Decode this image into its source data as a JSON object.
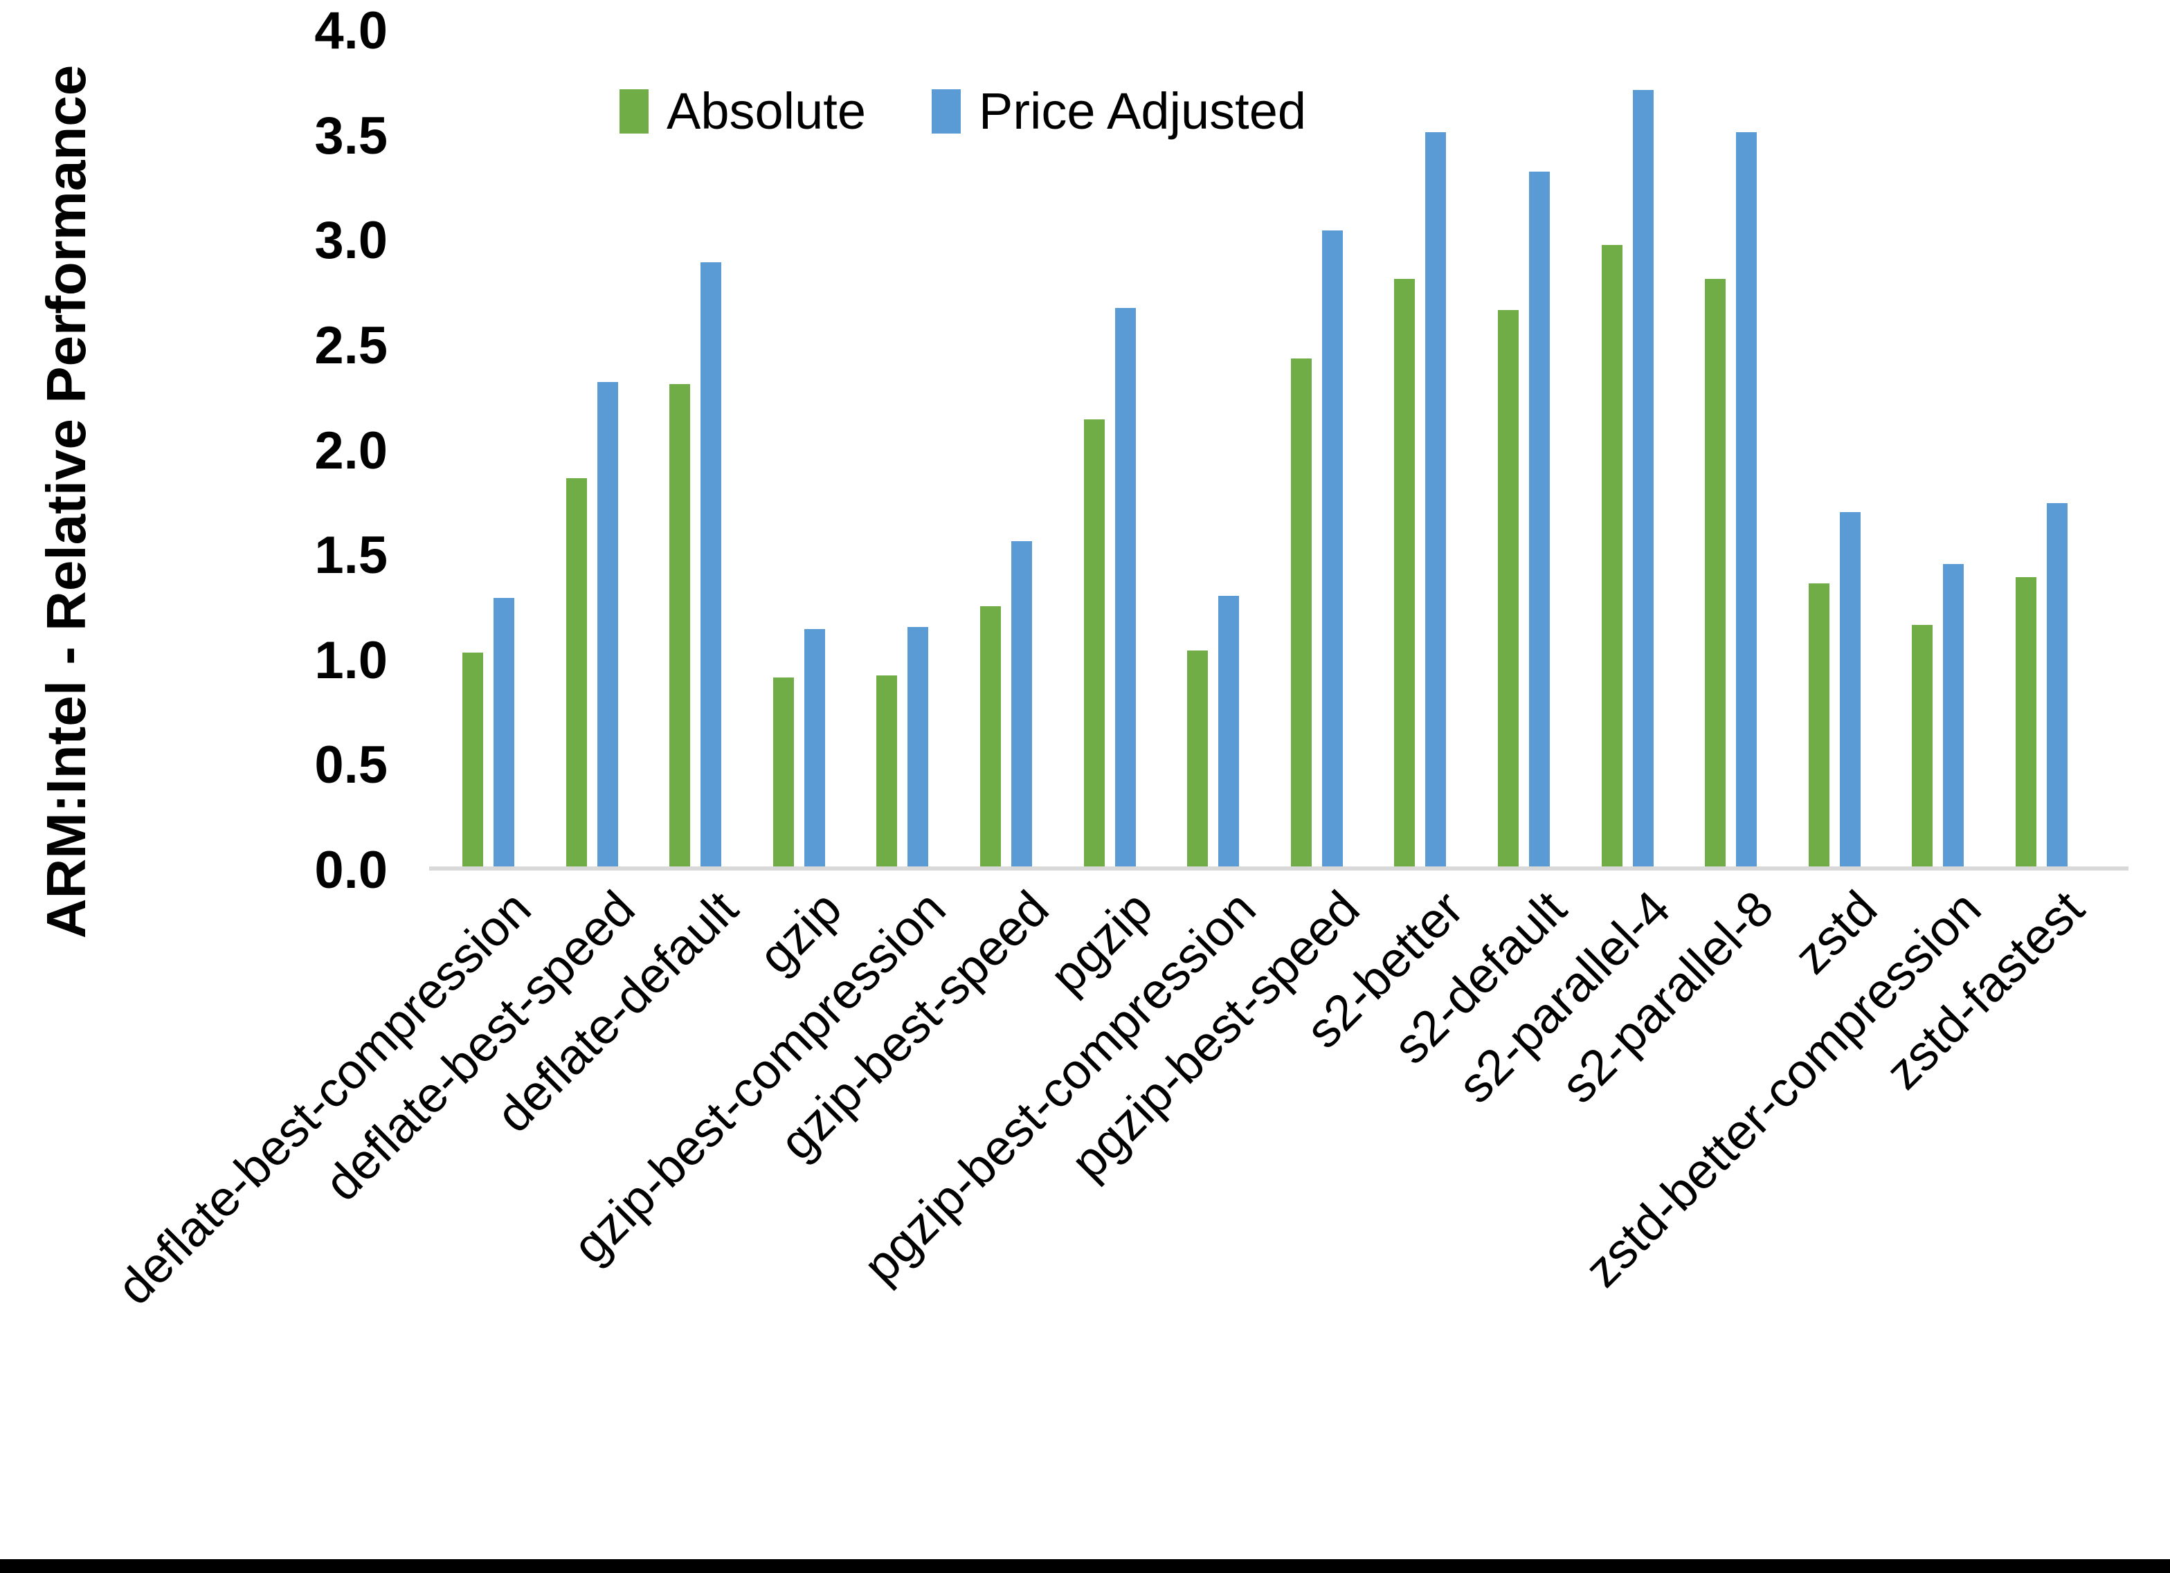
{
  "chart_data": {
    "type": "bar",
    "title": "",
    "ylabel": "ARM:Intel - Relative Performance",
    "xlabel": "",
    "ylim": [
      0.0,
      4.0
    ],
    "ytick_step": 0.5,
    "yticks": [
      "4.0",
      "3.5",
      "3.0",
      "2.5",
      "2.0",
      "1.5",
      "1.0",
      "0.5",
      "0.0"
    ],
    "grid": false,
    "legend_position": "top-center-inside",
    "axis_line_color": "#d9d9d9",
    "categories": [
      "deflate-best-compression",
      "deflate-best-speed",
      "deflate-default",
      "gzip",
      "gzip-best-compression",
      "gzip-best-speed",
      "pgzip",
      "pgzip-best-compression",
      "pgzip-best-speed",
      "s2-better",
      "s2-default",
      "s2-parallel-4",
      "s2-parallel-8",
      "zstd",
      "zstd-better-compression",
      "zstd-fastest"
    ],
    "series": [
      {
        "name": "Absolute",
        "color": "#70AD47",
        "values": [
          1.02,
          1.85,
          2.3,
          0.9,
          0.91,
          1.24,
          2.13,
          1.03,
          2.42,
          2.8,
          2.65,
          2.96,
          2.8,
          1.35,
          1.15,
          1.38
        ]
      },
      {
        "name": "Price Adjusted",
        "color": "#5B9BD5",
        "values": [
          1.28,
          2.31,
          2.88,
          1.13,
          1.14,
          1.55,
          2.66,
          1.29,
          3.03,
          3.5,
          3.31,
          3.7,
          3.5,
          1.69,
          1.44,
          1.73
        ]
      }
    ]
  }
}
